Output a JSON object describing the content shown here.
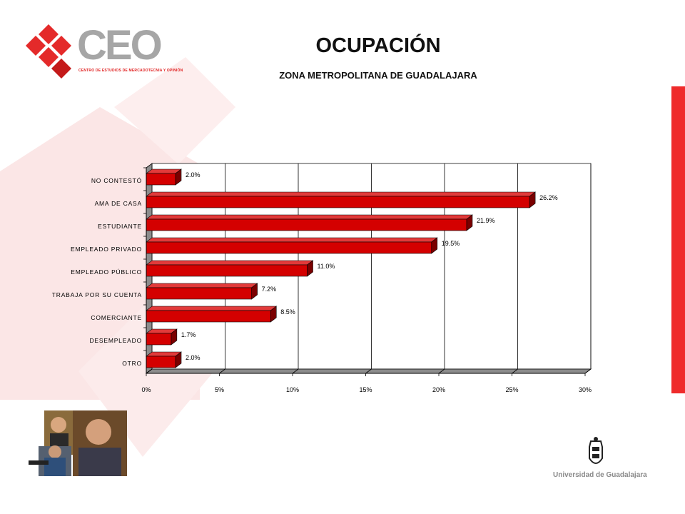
{
  "header": {
    "title": "OCUPACIÓN",
    "subtitle": "ZONA METROPOLITANA DE GUADALAJARA"
  },
  "logo": {
    "text": "CEO",
    "subtitle": "CENTRO DE ESTUDIOS DE MERCADOTECNIA Y OPINIÓN"
  },
  "university": {
    "name": "Universidad de Guadalajara"
  },
  "colors": {
    "bar_front": "#d40000",
    "bar_dark": "#7a0000",
    "accent_red": "#ef2b2b"
  },
  "chart_data": {
    "type": "bar",
    "orientation": "horizontal",
    "categories": [
      "NO CONTESTÓ",
      "AMA DE CASA",
      "ESTUDIANTE",
      "EMPLEADO PRIVADO",
      "EMPLEADO PÚBLICO",
      "TRABAJA POR SU CUENTA",
      "COMERCIANTE",
      "DESEMPLEADO",
      "OTRO"
    ],
    "values": [
      2.0,
      26.2,
      21.9,
      19.5,
      11.0,
      7.2,
      8.5,
      1.7,
      2.0
    ],
    "value_labels": [
      "2.0%",
      "26.2%",
      "21.9%",
      "19.5%",
      "11.0%",
      "7.2%",
      "8.5%",
      "1.7%",
      "2.0%"
    ],
    "x_ticks": [
      "0%",
      "5%",
      "10%",
      "15%",
      "20%",
      "25%",
      "30%"
    ],
    "xlim": [
      0,
      30
    ],
    "grid": true,
    "legend": "none"
  }
}
